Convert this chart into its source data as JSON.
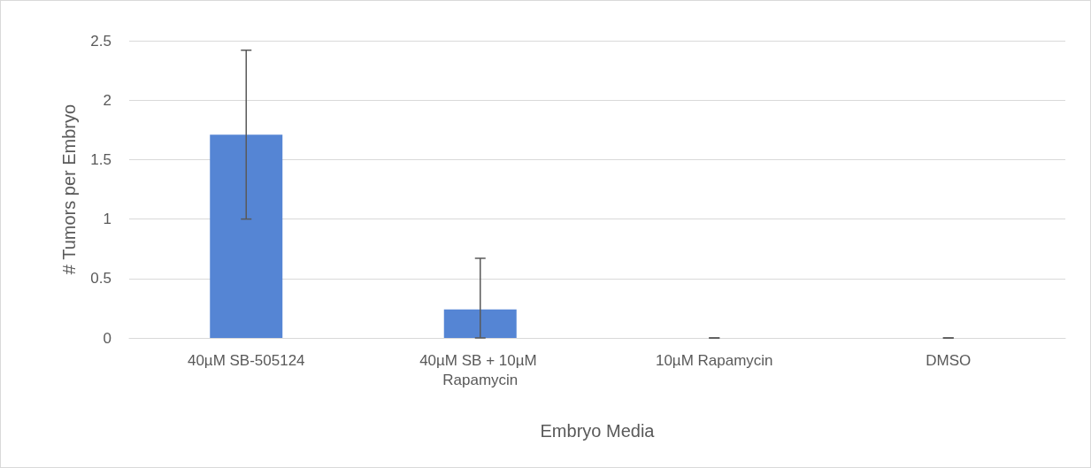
{
  "chart_data": {
    "type": "bar",
    "xlabel": "Embryo Media",
    "ylabel": "# Tumors per Embryo",
    "categories": [
      "40µM SB-505124",
      "40µM SB + 10µM Rapamycin",
      "10µM Rapamycin",
      "DMSO"
    ],
    "values": [
      1.71,
      0.24,
      0,
      0
    ],
    "errors": [
      0.71,
      [
        0,
        0.67
      ],
      0,
      0
    ],
    "color": "#5585d4",
    "ylim": [
      0,
      2.5
    ],
    "yticks": [
      0,
      0.5,
      1,
      1.5,
      2,
      2.5
    ],
    "grid": "y"
  }
}
